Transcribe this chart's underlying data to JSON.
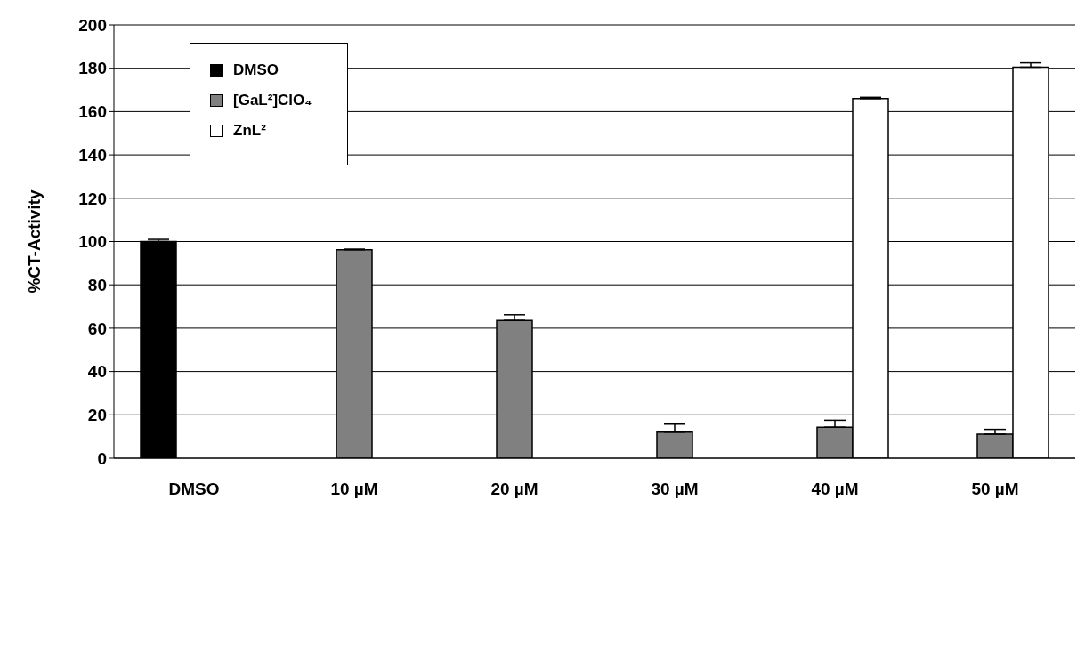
{
  "chart_data": {
    "type": "bar",
    "ylabel": "%CT-Activity",
    "categories": [
      "DMSO",
      "10 µM",
      "20 µM",
      "30 µM",
      "40 µM",
      "50 µM"
    ],
    "series": [
      {
        "name": "DMSO",
        "color": "#000000",
        "values": [
          100,
          null,
          null,
          null,
          null,
          null
        ],
        "errors": [
          [
            100,
            101
          ],
          null,
          null,
          null,
          null,
          null
        ]
      },
      {
        "name": "[GaL²]ClO₄",
        "color": "#808080",
        "values": [
          null,
          96.2,
          63.6,
          12,
          14.3,
          11.1
        ],
        "errors": [
          null,
          [
            96.2,
            96.5
          ],
          [
            63.6,
            66.2
          ],
          [
            12,
            15.7
          ],
          [
            14.3,
            17.5
          ],
          [
            11.1,
            13.3
          ]
        ]
      },
      {
        "name": "ZnL²",
        "color": "#ffffff",
        "values": [
          null,
          null,
          null,
          null,
          166,
          180.5
        ],
        "errors": [
          null,
          null,
          null,
          null,
          [
            166,
            166.6
          ],
          [
            180.5,
            182.5
          ]
        ]
      }
    ],
    "ylim": [
      0,
      200
    ],
    "yticks": [
      0,
      20,
      40,
      60,
      80,
      100,
      120,
      140,
      160,
      180,
      200
    ],
    "grid": "y",
    "legend": "top left"
  }
}
